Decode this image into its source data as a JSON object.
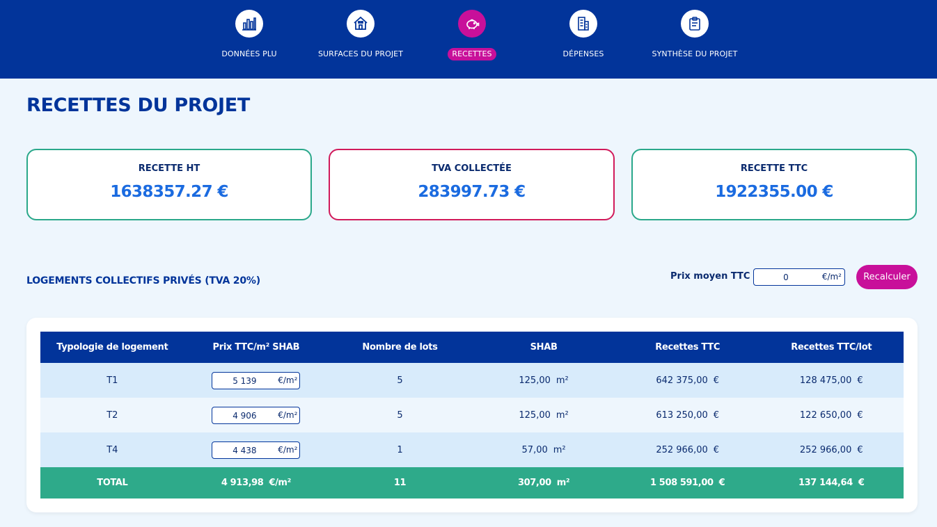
{
  "nav": {
    "items": [
      {
        "label": "DONNÉES PLU",
        "icon": "bar-chart-icon",
        "active": false
      },
      {
        "label": "SURFACES DU PROJET",
        "icon": "house-icon",
        "active": false
      },
      {
        "label": "RECETTES",
        "icon": "piggy-bank-icon",
        "active": true
      },
      {
        "label": "DÉPENSES",
        "icon": "building-icon",
        "active": false
      },
      {
        "label": "SYNTHÈSE DU PROJET",
        "icon": "clipboard-icon",
        "active": false
      }
    ]
  },
  "page": {
    "title": "RECETTES DU PROJET"
  },
  "summary": {
    "recette_ht": {
      "label": "RECETTE HT",
      "value": "1638357.27 €"
    },
    "tva": {
      "label": "TVA COLLECTÉE",
      "value": "283997.73 €"
    },
    "recette_ttc": {
      "label": "RECETTE TTC",
      "value": "1922355.00 €"
    }
  },
  "section": {
    "title": "LOGEMENTS COLLECTIFS PRIVÉS (TVA 20%)",
    "prix_label": "Prix moyen TTC",
    "prix_value": "0",
    "prix_unit": "€/m²",
    "recalc_label": "Recalculer"
  },
  "table": {
    "headers": [
      "Typologie de logement",
      "Prix TTC/m² SHAB",
      "Nombre de lots",
      "SHAB",
      "Recettes TTC",
      "Recettes TTC/lot"
    ],
    "rows": [
      {
        "type": "T1",
        "price": "5 139",
        "price_unit": "€/m²",
        "lots": "5",
        "shab": "125,00",
        "shab_unit": "m²",
        "recettes": "642 375,00",
        "recettes_unit": "€",
        "per_lot": "128 475,00",
        "per_lot_unit": "€"
      },
      {
        "type": "T2",
        "price": "4 906",
        "price_unit": "€/m²",
        "lots": "5",
        "shab": "125,00",
        "shab_unit": "m²",
        "recettes": "613 250,00",
        "recettes_unit": "€",
        "per_lot": "122 650,00",
        "per_lot_unit": "€"
      },
      {
        "type": "T4",
        "price": "4 438",
        "price_unit": "€/m²",
        "lots": "1",
        "shab": "57,00",
        "shab_unit": "m²",
        "recettes": "252 966,00",
        "recettes_unit": "€",
        "per_lot": "252 966,00",
        "per_lot_unit": "€"
      }
    ],
    "total": {
      "label": "TOTAL",
      "price": "4 913,98",
      "price_unit": "€/m²",
      "lots": "11",
      "shab": "307,00",
      "shab_unit": "m²",
      "recettes": "1 508 591,00",
      "recettes_unit": "€",
      "per_lot": "137 144,64",
      "per_lot_unit": "€"
    }
  }
}
